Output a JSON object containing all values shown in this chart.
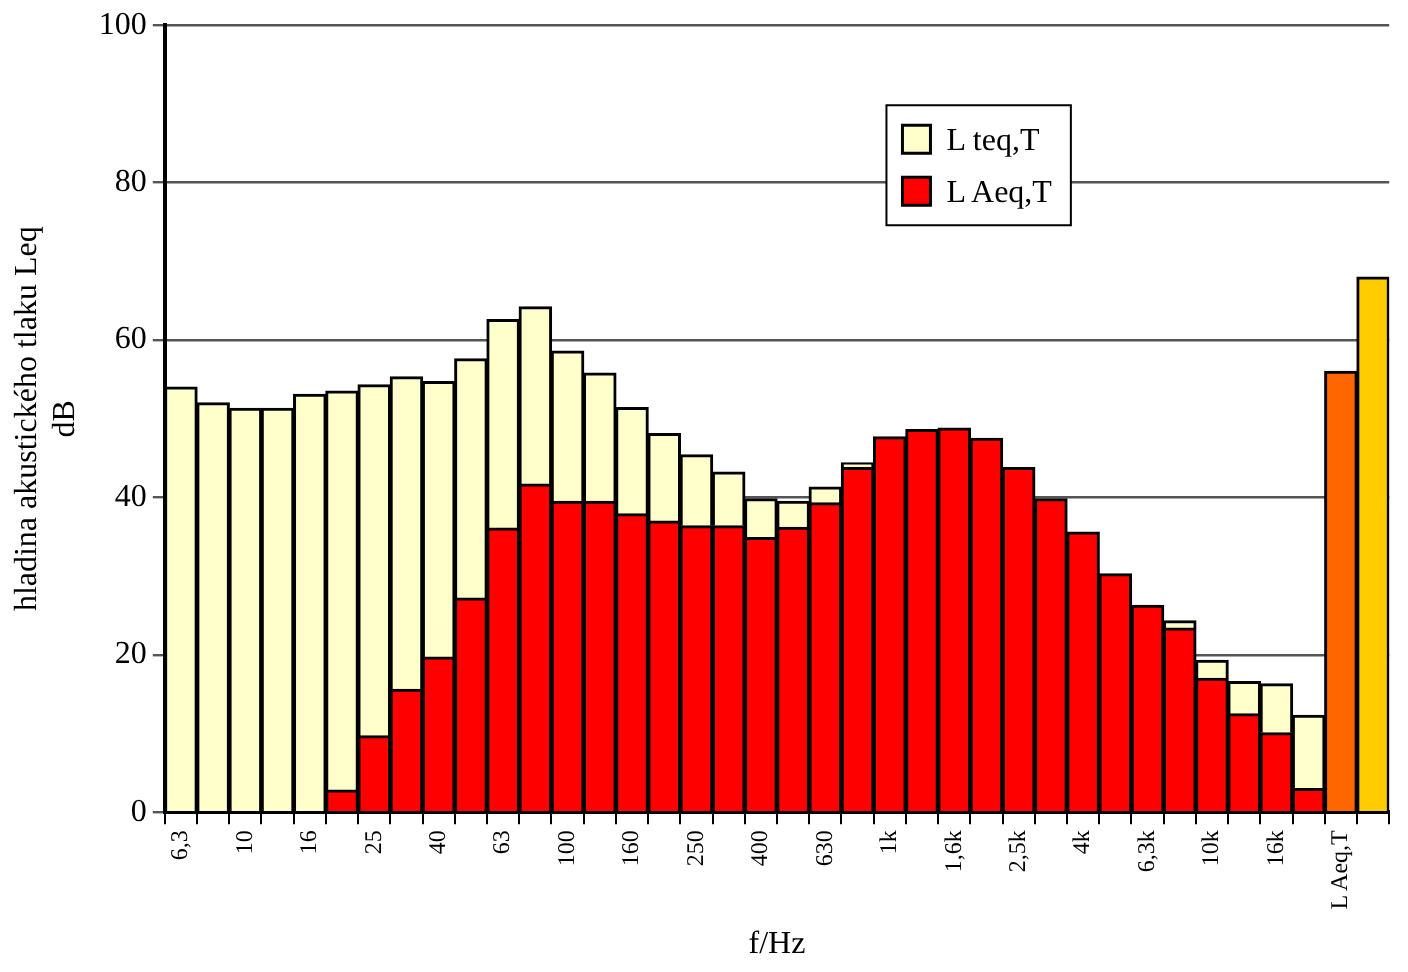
{
  "chart_data": {
    "type": "bar",
    "xlabel": "f/Hz",
    "ylabel": "hladina akustického tlaku Leq\ndB",
    "categories": [
      "6,3",
      null,
      "10",
      null,
      "16",
      null,
      "25",
      null,
      "40",
      null,
      "63",
      null,
      "100",
      null,
      "160",
      null,
      "250",
      null,
      "400",
      null,
      "630",
      null,
      "1k",
      null,
      "1,6k",
      null,
      "2,5k",
      null,
      "4k",
      null,
      "6,3k",
      null,
      "10k",
      null,
      "16k",
      null,
      "L Aeq,T",
      null
    ],
    "series": [
      {
        "name": "L Aeq,T",
        "color": "#ff0000",
        "colors": [
          "#ff0000",
          "#ff0000",
          "#ff0000",
          "#ff0000",
          "#ff0000",
          "#ff0000",
          "#ff0000",
          "#ff0000",
          "#ff0000",
          "#ff0000",
          "#ff0000",
          "#ff0000",
          "#ff0000",
          "#ff0000",
          "#ff0000",
          "#ff0000",
          "#ff0000",
          "#ff0000",
          "#ff0000",
          "#ff0000",
          "#ff0000",
          "#ff0000",
          "#ff0000",
          "#ff0000",
          "#ff0000",
          "#ff0000",
          "#ff0000",
          "#ff0000",
          "#ff0000",
          "#ff0000",
          "#ff0000",
          "#ff0000",
          "#ff0000",
          "#ff0000",
          "#ff0000",
          "#ff0000",
          "#ff6600",
          "#ff0000"
        ],
        "values": [
          null,
          null,
          null,
          null,
          null,
          2.8,
          9.7,
          15.6,
          19.7,
          27.2,
          36.1,
          41.7,
          39.5,
          39.5,
          37.9,
          37.0,
          36.4,
          36.4,
          34.9,
          36.2,
          39.3,
          43.8,
          47.7,
          48.6,
          48.8,
          47.5,
          43.8,
          39.8,
          35.6,
          30.3,
          26.3,
          23.4,
          17.0,
          12.5,
          10.1,
          3.0,
          56.0,
          null
        ]
      },
      {
        "name": "L teq,T",
        "color": "#ffffcc",
        "colors": [
          "#ffffcc",
          "#ffffcc",
          "#ffffcc",
          "#ffffcc",
          "#ffffcc",
          "#ffffcc",
          "#ffffcc",
          "#ffffcc",
          "#ffffcc",
          "#ffffcc",
          "#ffffcc",
          "#ffffcc",
          "#ffffcc",
          "#ffffcc",
          "#ffffcc",
          "#ffffcc",
          "#ffffcc",
          "#ffffcc",
          "#ffffcc",
          "#ffffcc",
          "#ffffcc",
          "#ffffcc",
          "#ffffcc",
          "#ffffcc",
          "#ffffcc",
          "#ffffcc",
          "#ffffcc",
          "#ffffcc",
          "#ffffcc",
          "#ffffcc",
          "#ffffcc",
          "#ffffcc",
          "#ffffcc",
          "#ffffcc",
          "#ffffcc",
          "#ffffcc",
          "#ffffcc",
          "#ffcc00"
        ],
        "values": [
          54.0,
          52.0,
          51.3,
          51.3,
          53.1,
          50.7,
          44.6,
          39.7,
          35.0,
          30.4,
          26.5,
          22.5,
          19.1,
          16.3,
          13.5,
          11.1,
          9.0,
          6.8,
          4.9,
          3.3,
          2.0,
          0.6,
          null,
          null,
          null,
          null,
          null,
          null,
          null,
          null,
          null,
          0.9,
          2.3,
          4.1,
          6.2,
          9.3,
          null,
          68
        ]
      }
    ],
    "stacked": true,
    "ylim": [
      0,
      100
    ],
    "yticks": [
      0,
      20,
      40,
      60,
      80,
      100
    ],
    "grid": "y",
    "legend": "top right"
  }
}
